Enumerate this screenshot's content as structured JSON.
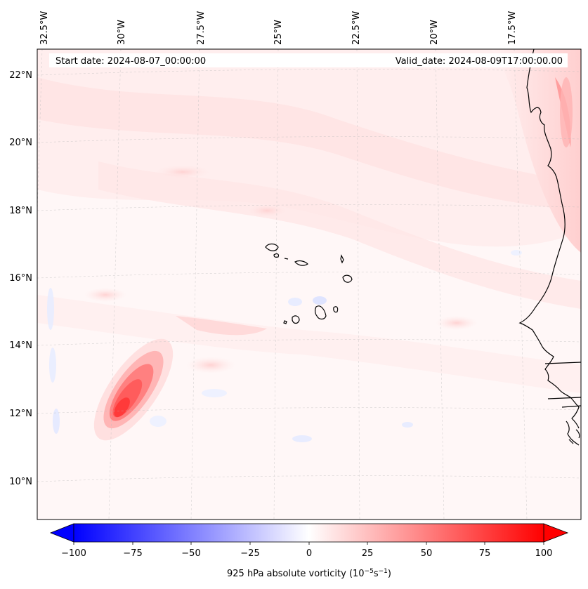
{
  "header": {
    "start_date": "Start date: 2024-08-07_00:00:00",
    "valid_date": "Valid_date: 2024-08-09T17:00:00.00"
  },
  "map": {
    "lon_labels": [
      "32.5°W",
      "30°W",
      "27.5°W",
      "25°W",
      "22.5°W",
      "20°W",
      "17.5°W"
    ],
    "lat_labels": [
      "22°N",
      "20°N",
      "18°N",
      "16°N",
      "14°N",
      "12°N",
      "10°N"
    ],
    "features": [
      "cape-verde-islands",
      "west-africa-coastline",
      "vorticity-maximum"
    ]
  },
  "colorbar": {
    "ticks": [
      "−100",
      "−75",
      "−50",
      "−25",
      "0",
      "25",
      "50",
      "75",
      "100"
    ],
    "label_main": "925 hPa absolute vorticity (10",
    "label_exp1": "−5",
    "label_mid": "s",
    "label_exp2": "−1",
    "label_end": ")",
    "vmin": -100,
    "vmax": 100,
    "colors": {
      "negative": "#0000ff",
      "zero": "#ffffff",
      "positive": "#ff0000"
    }
  }
}
